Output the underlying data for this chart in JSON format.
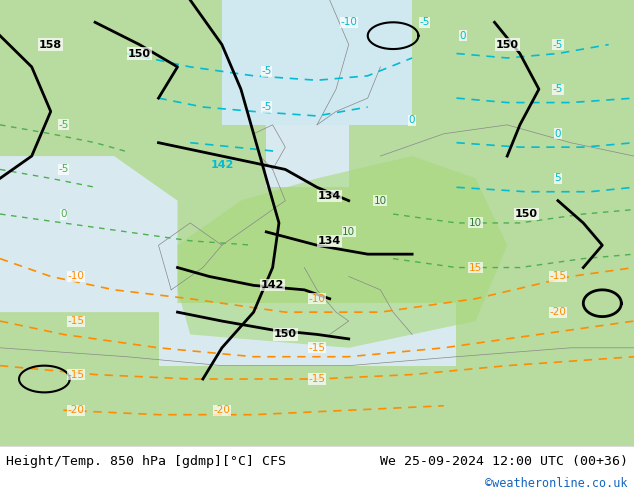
{
  "title_left": "Height/Temp. 850 hPa [gdmp][°C] CFS",
  "title_right": "We 25-09-2024 12:00 UTC (00+36)",
  "watermark": "©weatheronline.co.uk",
  "bg_color": "#c8e6c9",
  "map_bg_land": "#d4edda",
  "map_bg_sea": "#e8f4f8",
  "fig_width": 6.34,
  "fig_height": 4.9,
  "dpi": 100,
  "bottom_bar_color": "#ffffff",
  "text_color_left": "#000000",
  "text_color_right": "#000000",
  "watermark_color": "#1565c0",
  "font_size_bottom": 9.5,
  "font_size_watermark": 8.5
}
